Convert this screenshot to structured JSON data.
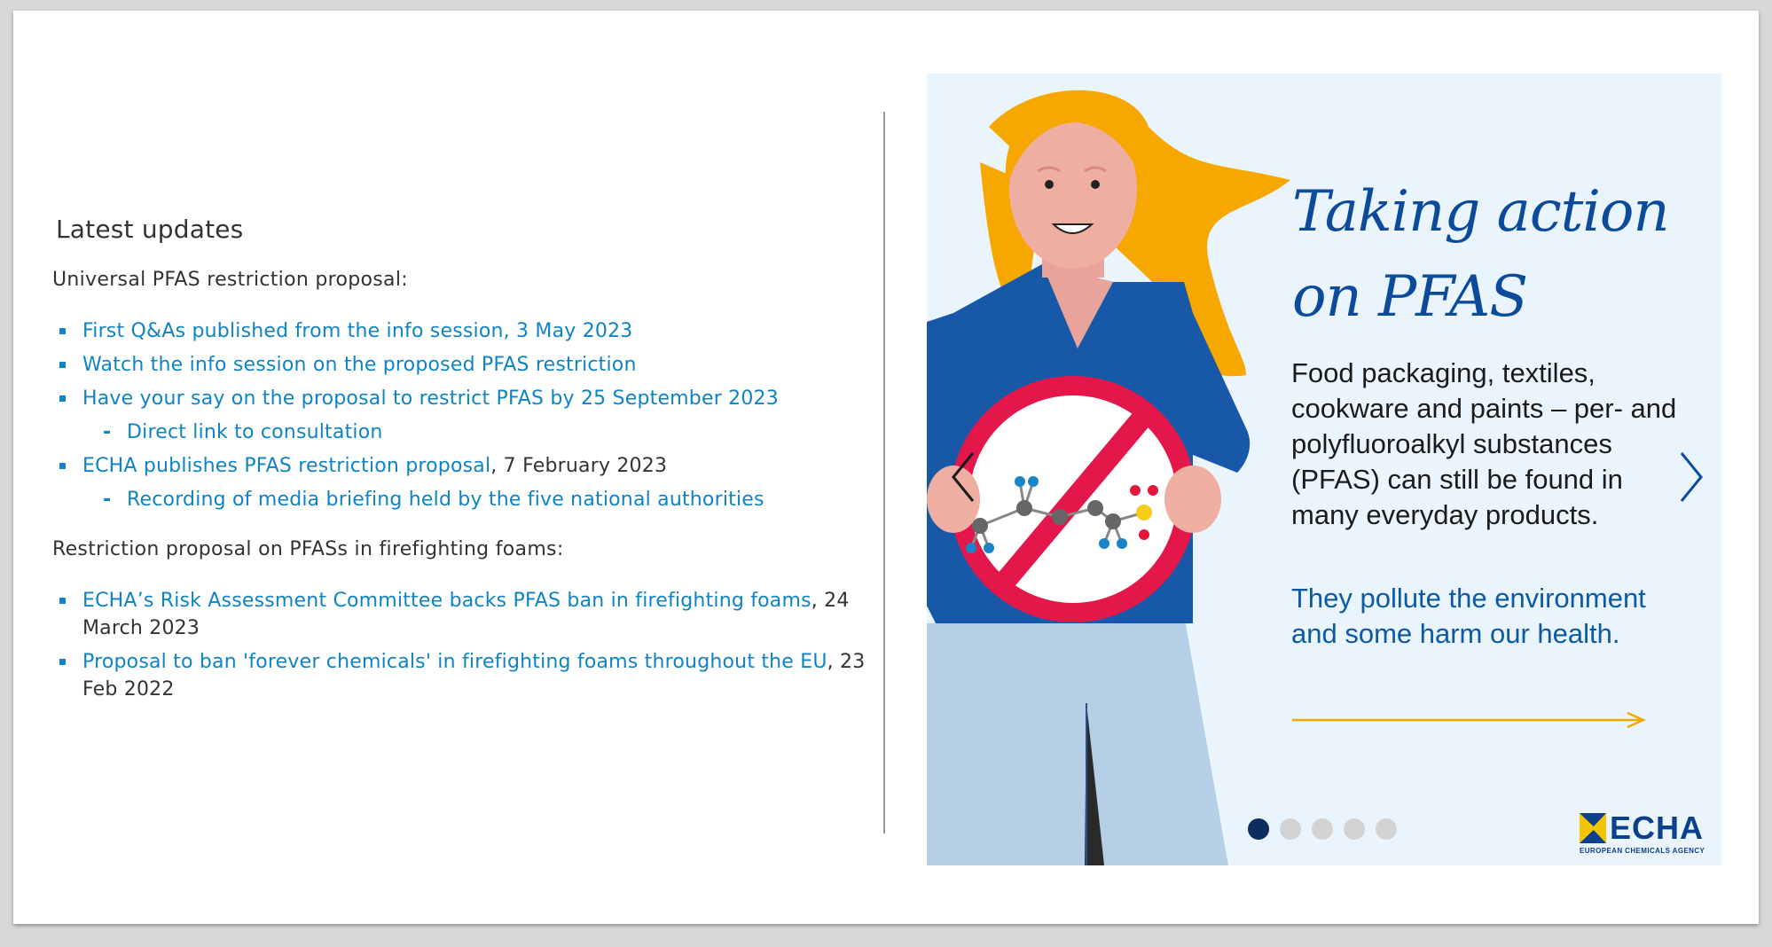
{
  "updates": {
    "heading": "Latest updates",
    "sections": [
      {
        "intro": "Universal PFAS restriction proposal:",
        "items": [
          {
            "link": "First Q&As published from the info session, 3 May 2023",
            "rest": ""
          },
          {
            "link": "Watch the info session on the proposed PFAS restriction",
            "rest": ""
          },
          {
            "link": "Have your say on the proposal to restrict PFAS by 25 September 2023",
            "rest": ""
          },
          {
            "link": "Direct link to consultation",
            "rest": ""
          },
          {
            "link": "ECHA publishes PFAS restriction proposal",
            "rest": ", 7 February 2023"
          },
          {
            "link": "Recording of media briefing held by the five national authorities",
            "rest": ""
          }
        ]
      },
      {
        "intro": "Restriction proposal on PFASs in firefighting foams:",
        "items": [
          {
            "link": "ECHA’s Risk Assessment Committee backs PFAS ban in firefighting foams",
            "rest": ", 24 March 2023"
          },
          {
            "link": "Proposal to ban 'forever chemicals' in firefighting foams throughout the EU",
            "rest": ", 23 Feb 2022"
          }
        ]
      }
    ]
  },
  "carousel": {
    "title_line1": "Taking action",
    "title_line2": "on PFAS",
    "body": "Food packaging, textiles, cookware and paints – per- and polyfluoroalkyl substances (PFAS) can still be found in many everyday products.",
    "highlight": "They pollute the environment and some harm our health.",
    "slide_count": 5,
    "active_slide": 1,
    "logo_text": "ECHA",
    "logo_tagline": "EUROPEAN CHEMICALS AGENCY",
    "colors": {
      "background": "#eaf4fc",
      "title": "#0c4b9c",
      "accent_arrow": "#f5a800",
      "active_dot": "#0c2d5e",
      "inactive_dot": "#d3d3d3"
    }
  }
}
